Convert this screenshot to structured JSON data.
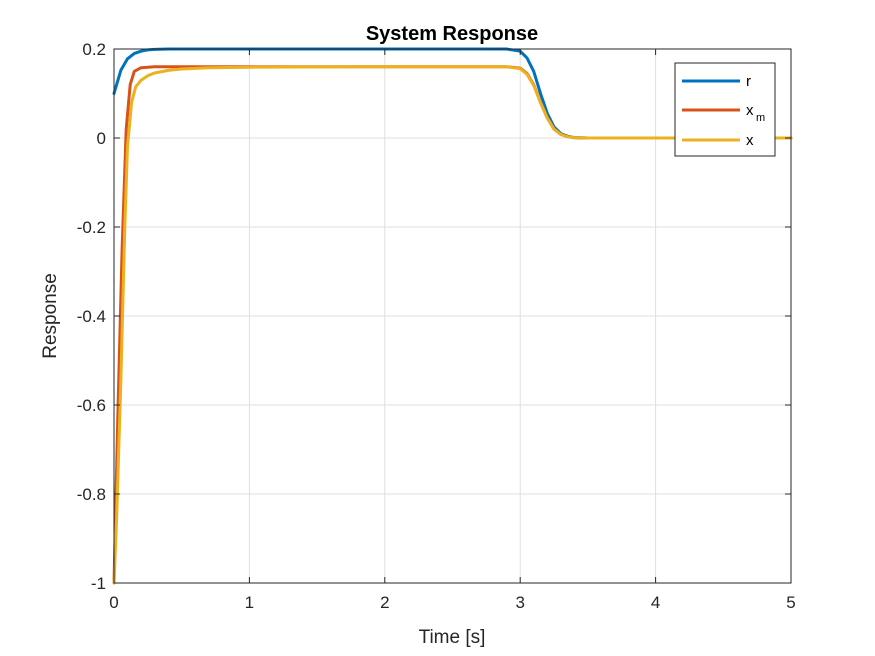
{
  "chart_data": {
    "type": "line",
    "title": "System Response",
    "xlabel": "Time [s]",
    "ylabel": "Response",
    "xlim": [
      0,
      5
    ],
    "ylim": [
      -1,
      0.2
    ],
    "xticks": [
      0,
      1,
      2,
      3,
      4,
      5
    ],
    "xtick_labels": [
      "0",
      "1",
      "2",
      "3",
      "4",
      "5"
    ],
    "yticks": [
      -1,
      -0.8,
      -0.6,
      -0.4,
      -0.2,
      0,
      0.2
    ],
    "ytick_labels": [
      "-1",
      "-0.8",
      "-0.6",
      "-0.4",
      "-0.2",
      "0",
      "0.2"
    ],
    "grid": true,
    "legend_position": "top-right",
    "series": [
      {
        "name": "r",
        "legend_main": "r",
        "legend_sub": "",
        "color": "#0072BD",
        "x": [
          0,
          0.05,
          0.1,
          0.15,
          0.2,
          0.25,
          0.3,
          0.4,
          0.5,
          1,
          2,
          2.9,
          3.0,
          3.05,
          3.1,
          3.15,
          3.2,
          3.25,
          3.3,
          3.35,
          3.4,
          3.5,
          4,
          5
        ],
        "y": [
          0.1,
          0.152,
          0.178,
          0.19,
          0.195,
          0.198,
          0.199,
          0.2,
          0.2,
          0.2,
          0.2,
          0.2,
          0.195,
          0.18,
          0.15,
          0.1,
          0.055,
          0.025,
          0.01,
          0.004,
          0.001,
          0,
          0,
          0
        ]
      },
      {
        "name": "x_m",
        "legend_main": "x",
        "legend_sub": "m",
        "color": "#D95319",
        "x": [
          0,
          0.03,
          0.06,
          0.09,
          0.12,
          0.15,
          0.2,
          0.3,
          0.5,
          1,
          2,
          2.9,
          3.0,
          3.05,
          3.1,
          3.15,
          3.2,
          3.25,
          3.3,
          3.35,
          3.4,
          3.5,
          4,
          5
        ],
        "y": [
          -1,
          -0.6,
          -0.25,
          0.02,
          0.12,
          0.15,
          0.158,
          0.16,
          0.16,
          0.16,
          0.16,
          0.16,
          0.157,
          0.145,
          0.12,
          0.08,
          0.045,
          0.02,
          0.008,
          0.003,
          0.001,
          0,
          0,
          0
        ]
      },
      {
        "name": "x",
        "legend_main": "x",
        "legend_sub": "",
        "color": "#EDB120",
        "x": [
          0,
          0.02,
          0.05,
          0.08,
          0.1,
          0.13,
          0.16,
          0.2,
          0.25,
          0.3,
          0.4,
          0.5,
          0.7,
          1,
          2,
          2.9,
          3.0,
          3.05,
          3.1,
          3.15,
          3.2,
          3.25,
          3.3,
          3.35,
          3.4,
          3.5,
          4,
          5
        ],
        "y": [
          -1,
          -0.85,
          -0.55,
          -0.2,
          -0.02,
          0.08,
          0.115,
          0.13,
          0.14,
          0.146,
          0.152,
          0.155,
          0.158,
          0.159,
          0.16,
          0.16,
          0.156,
          0.143,
          0.118,
          0.08,
          0.045,
          0.02,
          0.008,
          0.003,
          0.001,
          0,
          0,
          0
        ]
      }
    ]
  }
}
